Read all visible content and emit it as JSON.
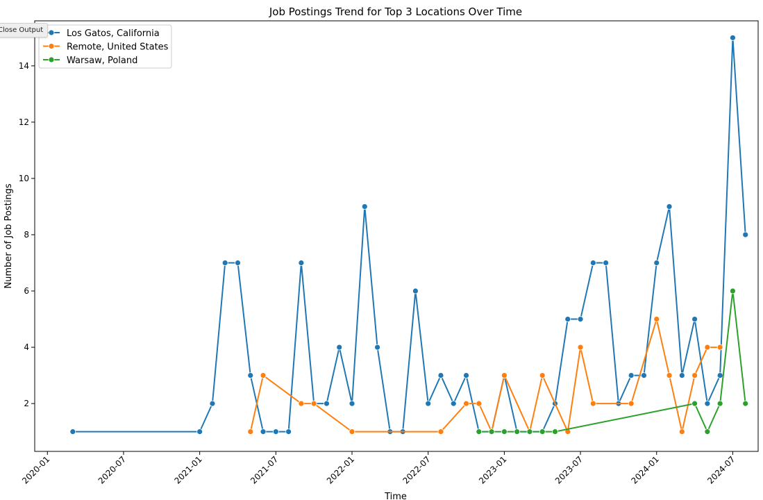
{
  "ui": {
    "close_output_label": "Close Output"
  },
  "chart_data": {
    "type": "line",
    "title": "Job Postings Trend for Top 3 Locations Over Time",
    "xlabel": "Time",
    "ylabel": "Number of Job Postings",
    "xlim": [
      "2019-12-01",
      "2024-09-01"
    ],
    "ylim": [
      0.3,
      15.6
    ],
    "x_ticks": [
      "2020-01",
      "2020-07",
      "2021-01",
      "2021-07",
      "2022-01",
      "2022-07",
      "2023-01",
      "2023-07",
      "2024-01",
      "2024-07"
    ],
    "y_ticks": [
      2,
      4,
      6,
      8,
      10,
      12,
      14
    ],
    "grid": false,
    "legend_position": "top-left",
    "series": [
      {
        "name": "Los Gatos, California",
        "color": "#1f77b4",
        "x": [
          "2020-03",
          "2021-01",
          "2021-02",
          "2021-03",
          "2021-04",
          "2021-05",
          "2021-06",
          "2021-07",
          "2021-08",
          "2021-09",
          "2021-10",
          "2021-11",
          "2021-12",
          "2022-01",
          "2022-02",
          "2022-03",
          "2022-04",
          "2022-05",
          "2022-06",
          "2022-07",
          "2022-08",
          "2022-09",
          "2022-10",
          "2022-11",
          "2022-12",
          "2023-01",
          "2023-02",
          "2023-03",
          "2023-04",
          "2023-05",
          "2023-06",
          "2023-07",
          "2023-08",
          "2023-09",
          "2023-10",
          "2023-11",
          "2023-12",
          "2024-01",
          "2024-02",
          "2024-03",
          "2024-04",
          "2024-05",
          "2024-06",
          "2024-07",
          "2024-08"
        ],
        "values": [
          1,
          1,
          2,
          7,
          7,
          3,
          1,
          1,
          1,
          7,
          2,
          2,
          4,
          2,
          9,
          4,
          1,
          1,
          6,
          2,
          3,
          2,
          3,
          1,
          1,
          3,
          1,
          1,
          1,
          2,
          5,
          5,
          7,
          7,
          2,
          3,
          3,
          7,
          9,
          3,
          5,
          2,
          3,
          15,
          8
        ]
      },
      {
        "name": "Remote, United States",
        "color": "#ff7f0e",
        "x": [
          "2021-05",
          "2021-06",
          "2021-09",
          "2021-10",
          "2022-01",
          "2022-08",
          "2022-10",
          "2022-11",
          "2022-12",
          "2023-01",
          "2023-03",
          "2023-04",
          "2023-06",
          "2023-07",
          "2023-08",
          "2023-11",
          "2024-01",
          "2024-02",
          "2024-03",
          "2024-04",
          "2024-05",
          "2024-06"
        ],
        "values": [
          1,
          3,
          2,
          2,
          1,
          1,
          2,
          2,
          1,
          3,
          1,
          3,
          1,
          4,
          2,
          2,
          5,
          3,
          1,
          3,
          4,
          4
        ]
      },
      {
        "name": "Warsaw, Poland",
        "color": "#2ca02c",
        "x": [
          "2022-11",
          "2022-12",
          "2023-01",
          "2023-02",
          "2023-03",
          "2023-04",
          "2023-05",
          "2024-04",
          "2024-05",
          "2024-06",
          "2024-07",
          "2024-08"
        ],
        "values": [
          1,
          1,
          1,
          1,
          1,
          1,
          1,
          2,
          1,
          2,
          6,
          2
        ]
      }
    ]
  }
}
